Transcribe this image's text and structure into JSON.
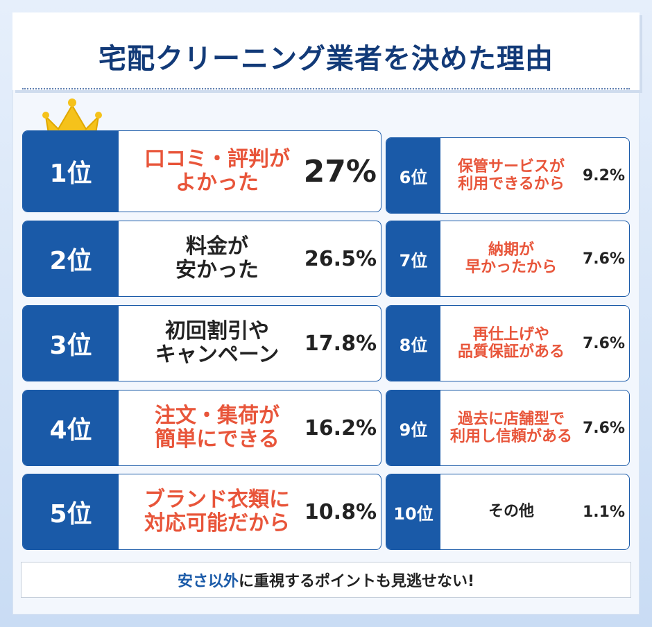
{
  "title": "宅配クリーニング業者を決めた理由",
  "items": [
    {
      "rank": "1位",
      "lines": [
        "口コミ・評判が",
        "よかった"
      ],
      "percent": "27%",
      "color": "#e8553a"
    },
    {
      "rank": "2位",
      "lines": [
        "料金が",
        "安かった"
      ],
      "percent": "26.5%",
      "color": "#222222"
    },
    {
      "rank": "3位",
      "lines": [
        "初回割引や",
        "キャンペーン"
      ],
      "percent": "17.8%",
      "color": "#222222"
    },
    {
      "rank": "4位",
      "lines": [
        "注文・集荷が",
        "簡単にできる"
      ],
      "percent": "16.2%",
      "color": "#e8553a"
    },
    {
      "rank": "5位",
      "lines": [
        "ブランド衣類に",
        "対応可能だから"
      ],
      "percent": "10.8%",
      "color": "#e8553a"
    },
    {
      "rank": "6位",
      "lines": [
        "保管サービスが",
        "利用できるから"
      ],
      "percent": "9.2%",
      "color": "#e8553a"
    },
    {
      "rank": "7位",
      "lines": [
        "納期が",
        "早かったから"
      ],
      "percent": "7.6%",
      "color": "#e8553a"
    },
    {
      "rank": "8位",
      "lines": [
        "再仕上げや",
        "品質保証がある"
      ],
      "percent": "7.6%",
      "color": "#e8553a"
    },
    {
      "rank": "9位",
      "lines": [
        "過去に店舗型で",
        "利用し信頼がある"
      ],
      "percent": "7.6%",
      "color": "#e8553a"
    },
    {
      "rank": "10位",
      "lines": [
        "その他"
      ],
      "percent": "1.1%",
      "color": "#222222"
    }
  ],
  "footer": {
    "highlight": "安さ以外",
    "rest": "に重視するポイントも見逃せない!"
  }
}
